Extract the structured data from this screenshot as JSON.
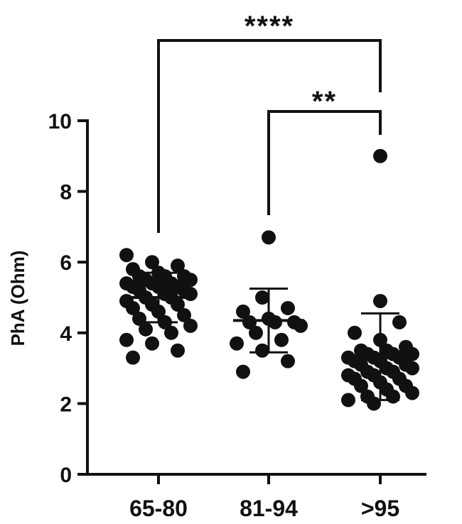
{
  "chart_data": {
    "type": "scatter",
    "ylabel": "PhA (Ohm)",
    "ylim": [
      0,
      10
    ],
    "yticks": [
      0,
      2,
      4,
      6,
      8,
      10
    ],
    "categories": [
      "65-80",
      "81-94",
      ">95"
    ],
    "groups": [
      {
        "category": "65-80",
        "mean": 5.0,
        "sd_low": 4.3,
        "sd_high": 5.7,
        "values": [
          6.2,
          6.0,
          5.9,
          5.8,
          5.7,
          5.6,
          5.6,
          5.6,
          5.5,
          5.5,
          5.4,
          5.4,
          5.4,
          5.3,
          5.3,
          5.3,
          5.2,
          5.2,
          5.1,
          5.1,
          5.0,
          5.0,
          4.9,
          4.8,
          4.8,
          4.7,
          4.6,
          4.5,
          4.4,
          4.3,
          4.2,
          4.1,
          4.0,
          3.8,
          3.7,
          3.5,
          3.3
        ]
      },
      {
        "category": "81-94",
        "mean": 4.35,
        "sd_low": 3.45,
        "sd_high": 5.25,
        "values": [
          6.7,
          5.0,
          4.7,
          4.6,
          4.4,
          4.3,
          4.3,
          4.3,
          4.2,
          4.0,
          3.8,
          3.7,
          3.5,
          3.2,
          2.9
        ]
      },
      {
        "category": ">95",
        "mean": 3.3,
        "sd_low": 2.1,
        "sd_high": 4.55,
        "values": [
          9.0,
          4.9,
          4.3,
          4.0,
          3.8,
          3.6,
          3.5,
          3.5,
          3.4,
          3.4,
          3.4,
          3.3,
          3.3,
          3.3,
          3.2,
          3.2,
          3.1,
          3.1,
          3.0,
          3.0,
          2.9,
          2.9,
          2.8,
          2.8,
          2.7,
          2.7,
          2.6,
          2.5,
          2.5,
          2.4,
          2.3,
          2.2,
          2.2,
          2.1,
          2.0
        ]
      }
    ],
    "comparisons": [
      {
        "from": "65-80",
        "to": ">95",
        "label": "****"
      },
      {
        "from": "81-94",
        "to": ">95",
        "label": "**"
      }
    ]
  }
}
